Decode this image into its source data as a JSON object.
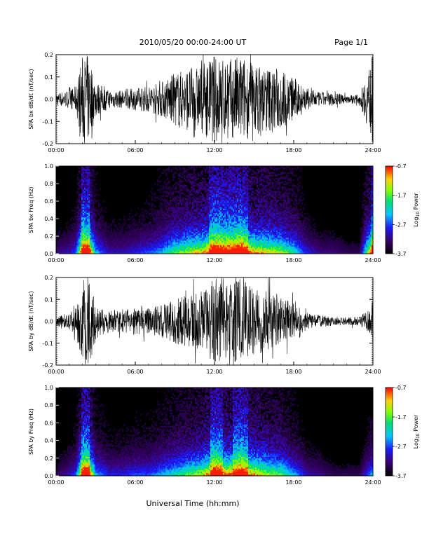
{
  "header": {
    "title": "2010/05/20  00:00-24:00 UT",
    "page": "Page 1/1"
  },
  "footer": {
    "xlabel": "Universal Time (hh:mm)"
  },
  "chart_data": [
    {
      "type": "line",
      "ylabel": "SPA bx dB/dt (nT/sec)",
      "xlabel": "",
      "x_ticks": [
        "00:00",
        "06:00",
        "12:00",
        "18:00",
        "24:00"
      ],
      "xlim": [
        0,
        24
      ],
      "ylim": [
        -0.2,
        0.2
      ],
      "y_ticks": [
        "-0.2",
        "-0.1",
        "0.0",
        "0.1",
        "0.2"
      ],
      "series": [
        {
          "x": [
            0,
            1,
            1.5,
            2,
            2.5,
            3,
            4,
            5,
            6,
            7,
            8,
            9,
            10,
            11,
            12,
            13,
            14,
            15,
            16,
            17,
            18,
            19,
            20,
            21,
            22,
            23,
            24
          ],
          "values": [
            0.03,
            0.04,
            0.06,
            0.2,
            0.2,
            0.08,
            0.04,
            0.04,
            0.05,
            0.06,
            0.08,
            0.12,
            0.14,
            0.15,
            0.2,
            0.18,
            0.2,
            0.16,
            0.15,
            0.14,
            0.1,
            0.05,
            0.03,
            0.03,
            0.02,
            0.02,
            0.2
          ]
        }
      ]
    },
    {
      "type": "heatmap",
      "ylabel": "SPA bx Freq (Hz)",
      "xlabel": "",
      "x_ticks": [
        "00:00",
        "06:00",
        "12:00",
        "18:00",
        "24:00"
      ],
      "xlim": [
        0,
        24
      ],
      "ylim": [
        0,
        1.0
      ],
      "y_ticks": [
        "0.0",
        "0.2",
        "0.4",
        "0.6",
        "0.8",
        "1.0"
      ],
      "colorbar": {
        "label": "Log10 Power",
        "label_main": "Log",
        "label_sub": "10",
        "label_rest": " Power",
        "ticks": [
          "-0.7",
          "-1.7",
          "-2.7",
          "-3.7"
        ],
        "range": [
          -3.7,
          -0.7
        ]
      }
    },
    {
      "type": "line",
      "ylabel": "SPA by dB/dt (nT/sec)",
      "xlabel": "",
      "x_ticks": [
        "00:00",
        "06:00",
        "12:00",
        "18:00",
        "24:00"
      ],
      "xlim": [
        0,
        24
      ],
      "ylim": [
        -0.2,
        0.2
      ],
      "y_ticks": [
        "-0.2",
        "-0.1",
        "0.0",
        "0.1",
        "0.2"
      ],
      "series": [
        {
          "x": [
            0,
            1,
            1.5,
            2,
            2.5,
            3,
            4,
            5,
            6,
            7,
            8,
            9,
            10,
            11,
            12,
            13,
            14,
            15,
            16,
            17,
            18,
            19,
            20,
            21,
            22,
            23,
            24
          ],
          "values": [
            0.02,
            0.04,
            0.06,
            0.2,
            0.2,
            0.08,
            0.05,
            0.05,
            0.06,
            0.06,
            0.08,
            0.1,
            0.12,
            0.14,
            0.2,
            0.17,
            0.2,
            0.16,
            0.14,
            0.12,
            0.08,
            0.04,
            0.03,
            0.02,
            0.02,
            0.02,
            0.08
          ]
        }
      ]
    },
    {
      "type": "heatmap",
      "ylabel": "SPA by Freq (Hz)",
      "xlabel": "",
      "x_ticks": [
        "00:00",
        "06:00",
        "12:00",
        "18:00",
        "24:00"
      ],
      "xlim": [
        0,
        24
      ],
      "ylim": [
        0,
        1.0
      ],
      "y_ticks": [
        "0.0",
        "0.2",
        "0.4",
        "0.6",
        "0.8",
        "1.0"
      ],
      "colorbar": {
        "label": "Log10 Power",
        "label_main": "Log",
        "label_sub": "10",
        "label_rest": " Power",
        "ticks": [
          "-0.7",
          "-1.7",
          "-2.7",
          "-3.7"
        ],
        "range": [
          -3.7,
          -0.7
        ]
      }
    }
  ]
}
